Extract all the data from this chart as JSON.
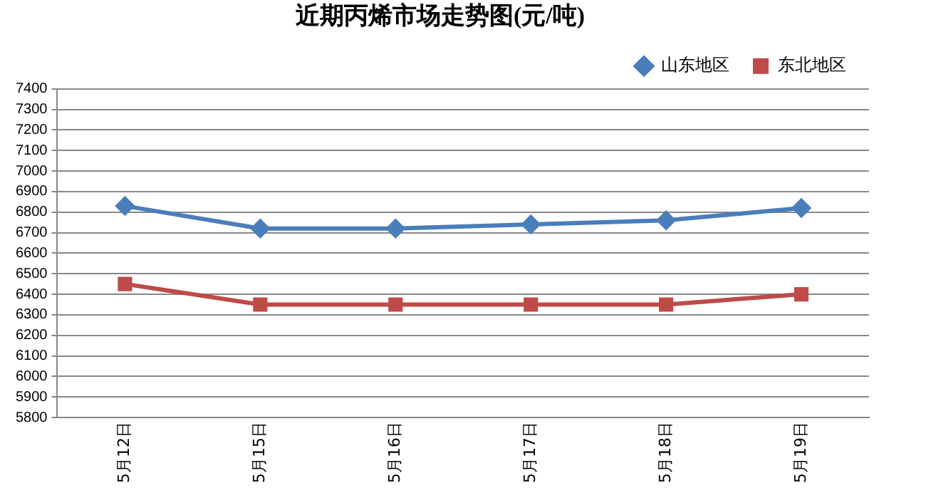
{
  "chart_data": {
    "type": "line",
    "title": "近期丙烯市场走势图(元/吨)",
    "categories": [
      "5月12日",
      "5月15日",
      "5月16日",
      "5月17日",
      "5月18日",
      "5月19日"
    ],
    "series": [
      {
        "name": "山东地区",
        "color": "#4a7ebb",
        "marker": "diamond",
        "values": [
          6830,
          6720,
          6720,
          6740,
          6760,
          6820
        ]
      },
      {
        "name": "东北地区",
        "color": "#be4b48",
        "marker": "square",
        "values": [
          6450,
          6350,
          6350,
          6350,
          6350,
          6400
        ]
      }
    ],
    "ylim": [
      5800,
      7400
    ],
    "yticks": [
      5800,
      5900,
      6000,
      6100,
      6200,
      6300,
      6400,
      6500,
      6600,
      6700,
      6800,
      6900,
      7000,
      7100,
      7200,
      7300,
      7400
    ],
    "grid": "y",
    "legend": "top right",
    "line_style": "solid"
  }
}
